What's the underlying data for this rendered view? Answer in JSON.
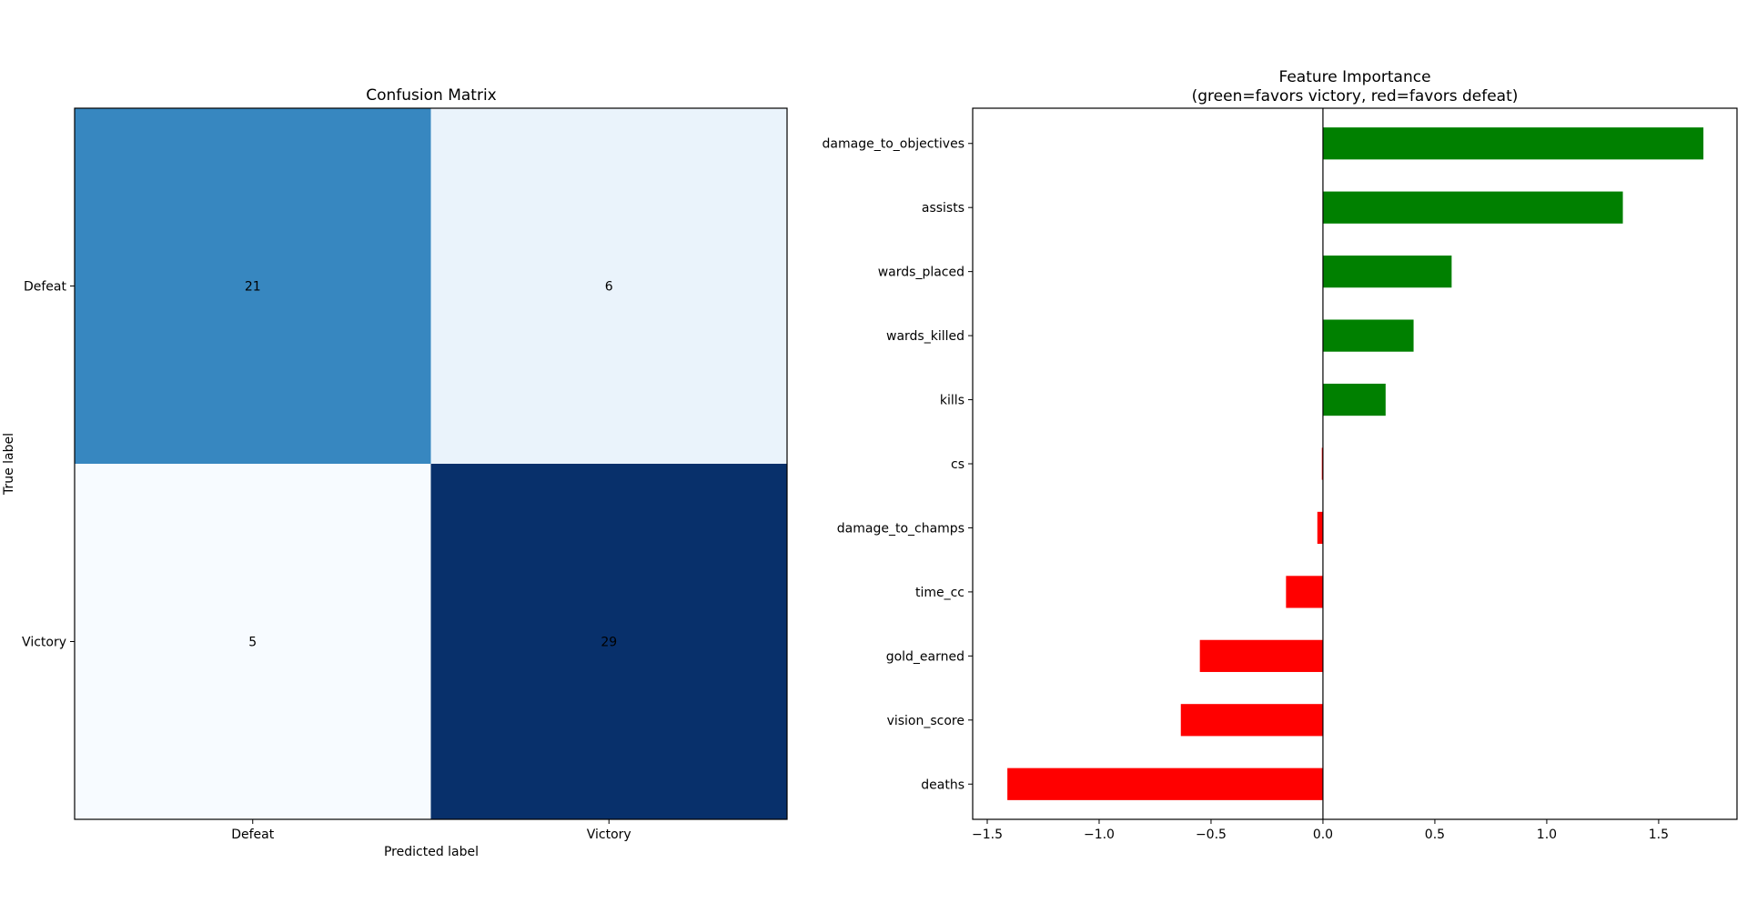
{
  "chart_data": [
    {
      "type": "heatmap",
      "title": "Confusion Matrix",
      "xlabel": "Predicted label",
      "ylabel": "True label",
      "x_categories": [
        "Defeat",
        "Victory"
      ],
      "y_categories": [
        "Defeat",
        "Victory"
      ],
      "values": [
        [
          21,
          6
        ],
        [
          5,
          29
        ]
      ],
      "colormap": "Blues",
      "cell_colors": [
        [
          "#3787c0",
          "#eaf3fb"
        ],
        [
          "#f7fbff",
          "#08306b"
        ]
      ],
      "text_colors": [
        [
          "#ffffff",
          "#08306b"
        ],
        [
          "#08306b",
          "#ffffff"
        ]
      ]
    },
    {
      "type": "bar",
      "orientation": "horizontal",
      "title": "Feature Importance",
      "subtitle": "(green=favors victory, red=favors defeat)",
      "categories": [
        "damage_to_objectives",
        "assists",
        "wards_placed",
        "wards_killed",
        "kills",
        "cs",
        "damage_to_champs",
        "time_cc",
        "gold_earned",
        "vision_score",
        "deaths"
      ],
      "values": [
        1.7,
        1.34,
        0.575,
        0.405,
        0.28,
        -0.005,
        -0.025,
        -0.165,
        -0.55,
        -0.635,
        -1.41
      ],
      "positive_color": "#008000",
      "negative_color": "#ff0000",
      "xlim": [
        -1.565,
        1.85
      ],
      "xticks": [
        -1.5,
        -1.0,
        -0.5,
        0.0,
        0.5,
        1.0,
        1.5
      ],
      "xtick_labels": [
        "−1.5",
        "−1.0",
        "−0.5",
        "0.0",
        "0.5",
        "1.0",
        "1.5"
      ],
      "grid": false
    }
  ]
}
